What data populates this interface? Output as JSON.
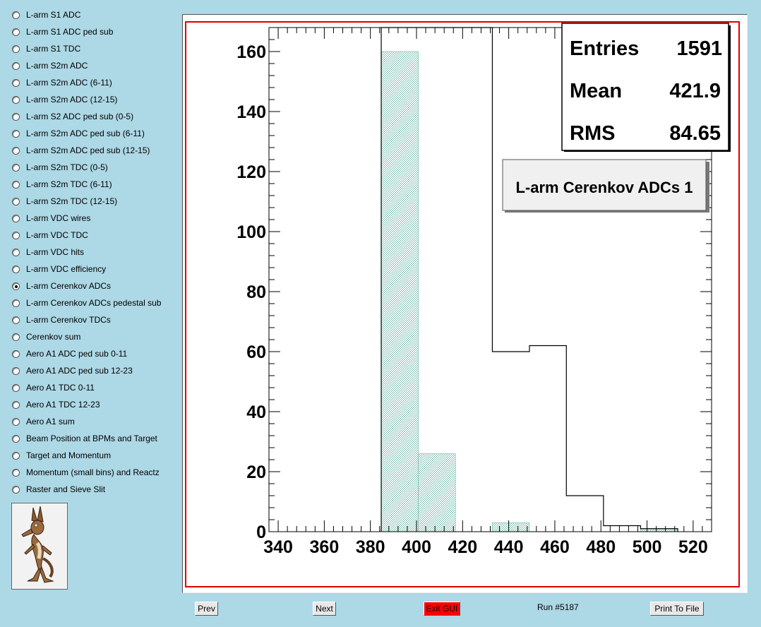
{
  "menu": {
    "items": [
      {
        "label": "L-arm S1 ADC",
        "selected": false
      },
      {
        "label": "L-arm S1 ADC ped sub",
        "selected": false
      },
      {
        "label": "L-arm S1 TDC",
        "selected": false
      },
      {
        "label": "L-arm S2m ADC",
        "selected": false
      },
      {
        "label": "L-arm S2m ADC (6-11)",
        "selected": false
      },
      {
        "label": "L-arm S2m ADC (12-15)",
        "selected": false
      },
      {
        "label": "L-arm S2 ADC ped sub (0-5)",
        "selected": false
      },
      {
        "label": "L-arm S2m ADC ped sub (6-11)",
        "selected": false
      },
      {
        "label": "L-arm S2m ADC ped sub (12-15)",
        "selected": false
      },
      {
        "label": "L-arm S2m TDC (0-5)",
        "selected": false
      },
      {
        "label": "L-arm S2m TDC (6-11)",
        "selected": false
      },
      {
        "label": "L-arm S2m TDC (12-15)",
        "selected": false
      },
      {
        "label": "L-arm VDC wires",
        "selected": false
      },
      {
        "label": "L-arm VDC TDC",
        "selected": false
      },
      {
        "label": "L-arm VDC hits",
        "selected": false
      },
      {
        "label": "L-arm VDC efficiency",
        "selected": false
      },
      {
        "label": "L-arm Cerenkov ADCs",
        "selected": true
      },
      {
        "label": "L-arm Cerenkov ADCs pedestal sub",
        "selected": false
      },
      {
        "label": "L-arm Cerenkov TDCs",
        "selected": false
      },
      {
        "label": "Cerenkov sum",
        "selected": false
      },
      {
        "label": "Aero A1 ADC ped sub 0-11",
        "selected": false
      },
      {
        "label": "Aero A1 ADC ped sub 12-23",
        "selected": false
      },
      {
        "label": "Aero A1 TDC 0-11",
        "selected": false
      },
      {
        "label": "Aero A1 TDC 12-23",
        "selected": false
      },
      {
        "label": "Aero A1 sum",
        "selected": false
      },
      {
        "label": "Beam Position at BPMs and Target",
        "selected": false
      },
      {
        "label": "Target and Momentum",
        "selected": false
      },
      {
        "label": "Momentum (small bins) and Reactz",
        "selected": false
      },
      {
        "label": "Raster and Sieve Slit",
        "selected": false
      }
    ]
  },
  "logo": {
    "icon": "cartoon-coyote-logo"
  },
  "buttons": {
    "prev": "Prev",
    "next": "Next",
    "exit": "Exit GUI",
    "print": "Print To File"
  },
  "run_label": "Run #5187",
  "colors": {
    "background": "#add8e6",
    "frame": "#dd0000",
    "hatch_fill": "#6fb8a8",
    "exit_button": "#ff0000"
  },
  "stats": {
    "rows": [
      {
        "name": "Entries",
        "value": "1591"
      },
      {
        "name": "Mean",
        "value": "421.9"
      },
      {
        "name": "RMS",
        "value": "84.65"
      }
    ]
  },
  "chart_data": {
    "type": "bar",
    "title": "L-arm Cerenkov ADCs 1",
    "xlabel": "",
    "ylabel": "",
    "xlim": [
      336,
      528
    ],
    "ylim": [
      0,
      168
    ],
    "x_ticks": [
      340,
      360,
      380,
      400,
      420,
      440,
      460,
      480,
      500,
      520
    ],
    "y_ticks": [
      0,
      20,
      40,
      60,
      80,
      100,
      120,
      140,
      160
    ],
    "series": [
      {
        "style": "outline",
        "bins": [
          {
            "x0": 384.7,
            "x1": 432.9,
            "value": 168
          },
          {
            "x0": 432.9,
            "x1": 449.0,
            "value": 60
          },
          {
            "x0": 449.0,
            "x1": 465.0,
            "value": 62
          },
          {
            "x0": 465.0,
            "x1": 481.1,
            "value": 12
          },
          {
            "x0": 481.1,
            "x1": 497.2,
            "value": 2
          },
          {
            "x0": 497.2,
            "x1": 513.3,
            "value": 1
          }
        ]
      },
      {
        "style": "hatched",
        "bins": [
          {
            "x0": 384.7,
            "x1": 400.8,
            "value": 160
          },
          {
            "x0": 400.8,
            "x1": 416.9,
            "value": 26
          },
          {
            "x0": 432.9,
            "x1": 449.0,
            "value": 3
          },
          {
            "x0": 497.2,
            "x1": 513.3,
            "value": 1
          }
        ]
      }
    ]
  }
}
